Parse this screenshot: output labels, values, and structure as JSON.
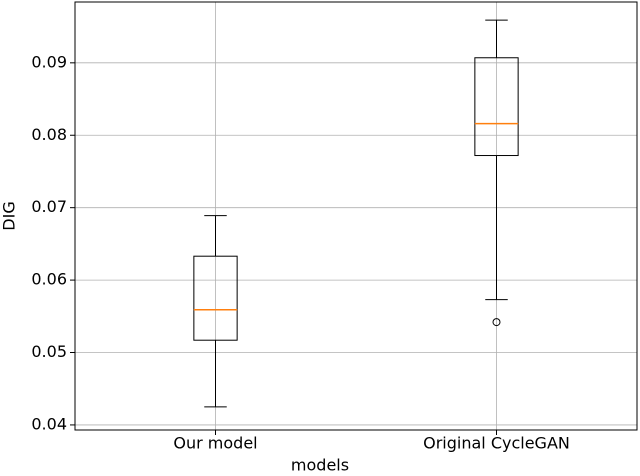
{
  "chart_data": {
    "type": "box",
    "categories": [
      "Our model",
      "Original CycleGAN"
    ],
    "boxes": [
      {
        "whisker_low": 0.0425,
        "q1": 0.0517,
        "median": 0.0559,
        "q3": 0.0633,
        "whisker_high": 0.0689,
        "outliers": []
      },
      {
        "whisker_low": 0.0573,
        "q1": 0.0772,
        "median": 0.0816,
        "q3": 0.0907,
        "whisker_high": 0.0959,
        "outliers": [
          0.0542
        ]
      }
    ],
    "box_color": "#000000",
    "median_color": "#ff7f0e",
    "xlabel": "models",
    "ylabel": "DIG",
    "ylim": [
      0.0393,
      0.0984
    ],
    "yticks": [
      0.04,
      0.05,
      0.06,
      0.07,
      0.08,
      0.09
    ],
    "grid": true
  }
}
